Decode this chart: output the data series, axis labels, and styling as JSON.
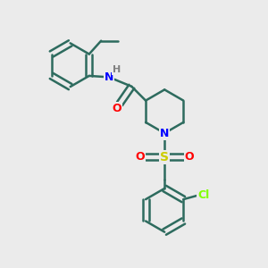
{
  "bg_color": "#ebebeb",
  "bond_color": "#2d6b5e",
  "bond_width": 1.8,
  "atom_colors": {
    "N": "#0000ff",
    "O": "#ff0000",
    "S": "#cccc00",
    "Cl": "#7fff00",
    "H": "#808080",
    "C": "#2d6b5e"
  },
  "font_size": 9
}
